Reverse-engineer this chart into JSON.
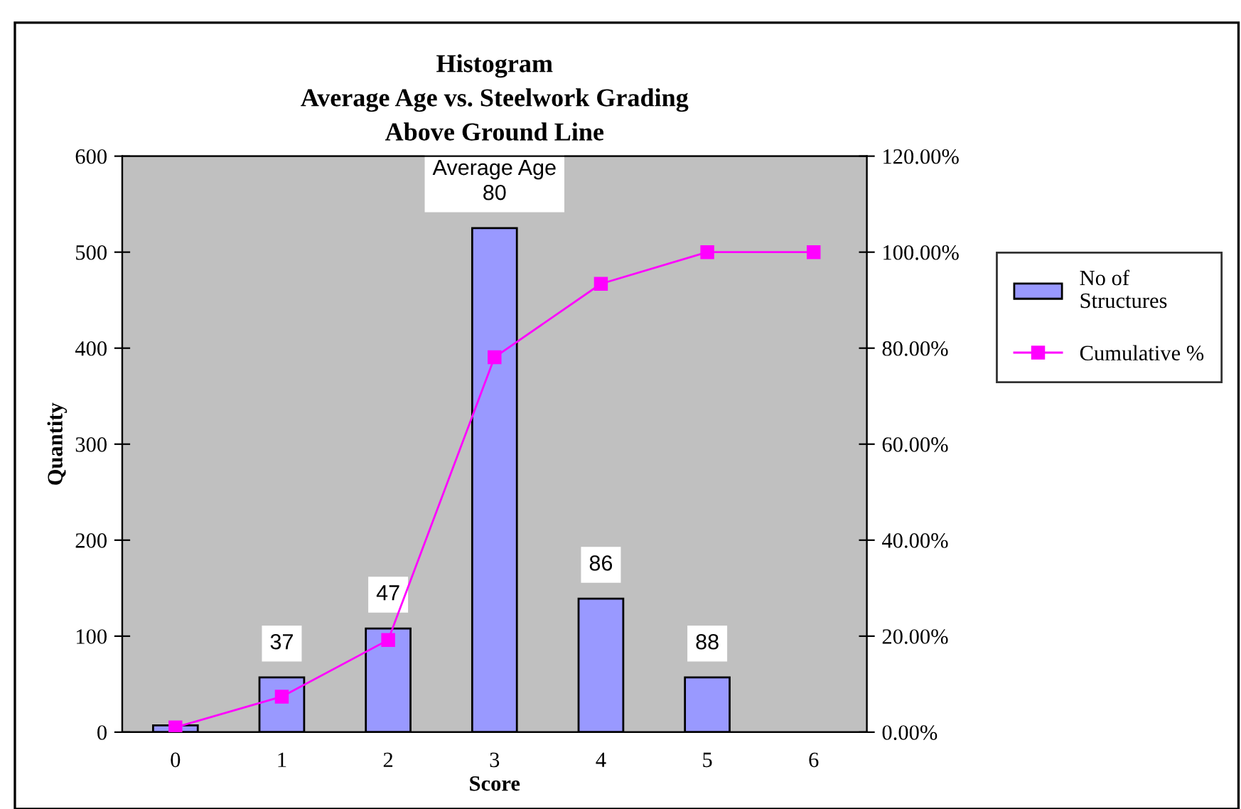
{
  "chart_data": {
    "type": "bar",
    "title": "Histogram\nAverage Age vs. Steelwork Grading\nAbove Ground Line",
    "xlabel": "Score",
    "ylabel": "Quantity",
    "categories": [
      "0",
      "1",
      "2",
      "3",
      "4",
      "5",
      "6"
    ],
    "series": [
      {
        "name": "No of Structures",
        "color": "#9999ff",
        "values": [
          7,
          57,
          108,
          525,
          139,
          57,
          null
        ]
      },
      {
        "name": "Cumulative %",
        "type": "line",
        "axis": "y2",
        "color": "#ff00ff",
        "marker": "square",
        "values": [
          1.0,
          7.4,
          19.2,
          78.1,
          93.4,
          100,
          100
        ]
      }
    ],
    "ylim": [
      0,
      600
    ],
    "yticks": [
      0,
      100,
      200,
      300,
      400,
      500,
      600
    ],
    "y2lim": [
      0,
      120
    ],
    "y2ticks": [
      {
        "value": 0,
        "label": "0.00%"
      },
      {
        "value": 20,
        "label": "20.00%"
      },
      {
        "value": 40,
        "label": "40.00%"
      },
      {
        "value": 60,
        "label": "60.00%"
      },
      {
        "value": 80,
        "label": "80.00%"
      },
      {
        "value": 100,
        "label": "100.00%"
      },
      {
        "value": 120,
        "label": "120.00%"
      }
    ],
    "annotations": [
      {
        "text": "37",
        "x": "1",
        "y": 57
      },
      {
        "text": "47",
        "x": "2",
        "y": 108
      },
      {
        "text": "Average Age\n80",
        "x": "3",
        "y": 525
      },
      {
        "text": "86",
        "x": "4",
        "y": 139
      },
      {
        "text": "88",
        "x": "5",
        "y": 57
      }
    ],
    "grid": false,
    "legend": "right"
  }
}
